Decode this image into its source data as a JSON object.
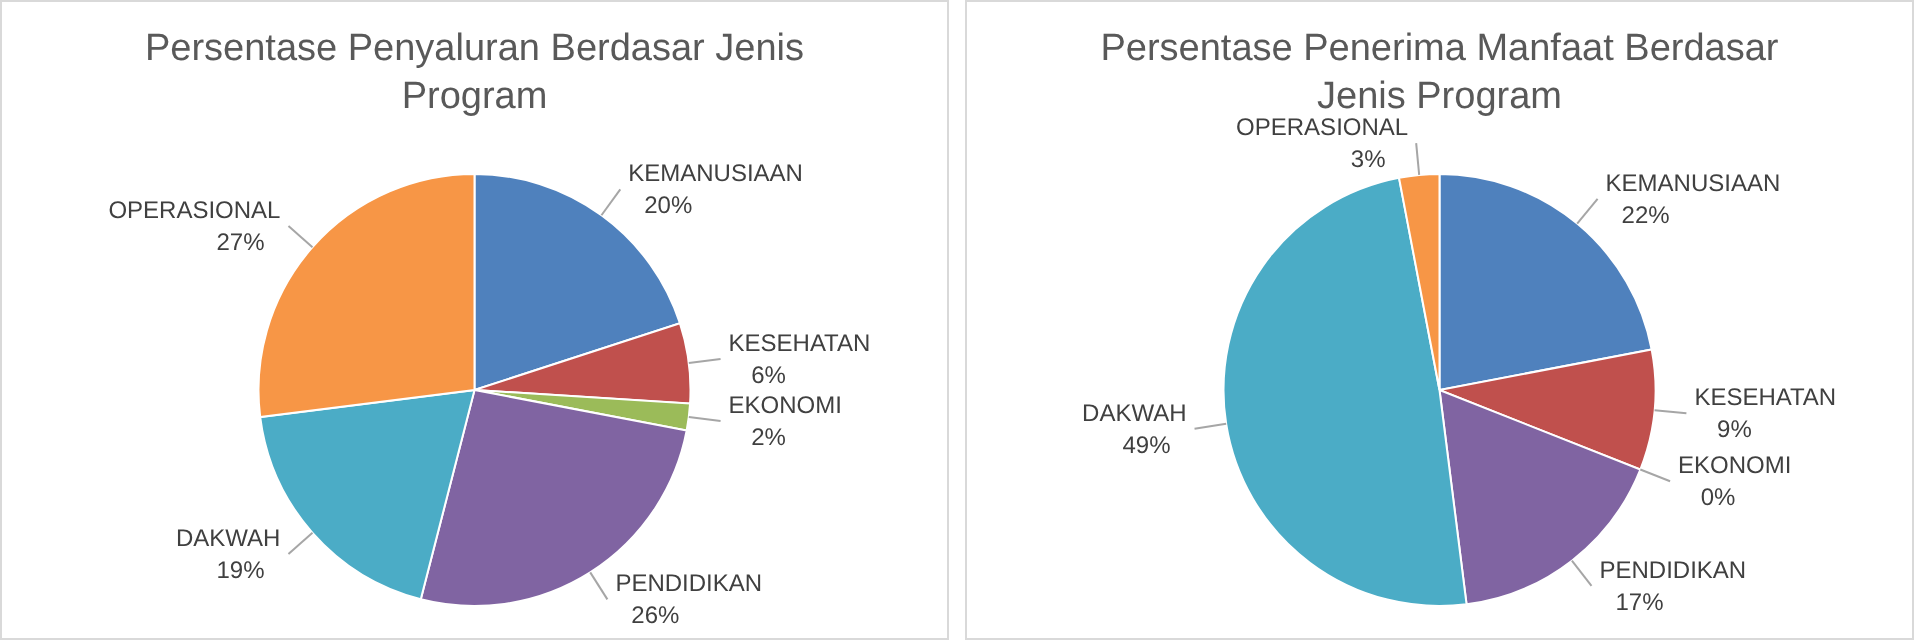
{
  "chart_data": [
    {
      "type": "pie",
      "title": "Persentase Penyaluran Berdasar Jenis Program",
      "categories": [
        "KEMANUSIAAN",
        "KESEHATAN",
        "EKONOMI",
        "PENDIDIKAN",
        "DAKWAH",
        "OPERASIONAL"
      ],
      "values": [
        20,
        6,
        2,
        26,
        19,
        27
      ],
      "value_labels": [
        "20%",
        "6%",
        "2%",
        "26%",
        "19%",
        "27%"
      ],
      "colors": [
        "#4f81bd",
        "#c0504d",
        "#9bbb59",
        "#8064a2",
        "#4bacc6",
        "#f79646"
      ]
    },
    {
      "type": "pie",
      "title": "Persentase Penerima Manfaat Berdasar Jenis Program",
      "categories": [
        "KEMANUSIAAN",
        "KESEHATAN",
        "EKONOMI",
        "PENDIDIKAN",
        "DAKWAH",
        "OPERASIONAL"
      ],
      "values": [
        22,
        9,
        0,
        17,
        49,
        3
      ],
      "value_labels": [
        "22%",
        "9%",
        "0%",
        "17%",
        "49%",
        "3%"
      ],
      "colors": [
        "#4f81bd",
        "#c0504d",
        "#9bbb59",
        "#8064a2",
        "#4bacc6",
        "#f79646"
      ]
    }
  ]
}
